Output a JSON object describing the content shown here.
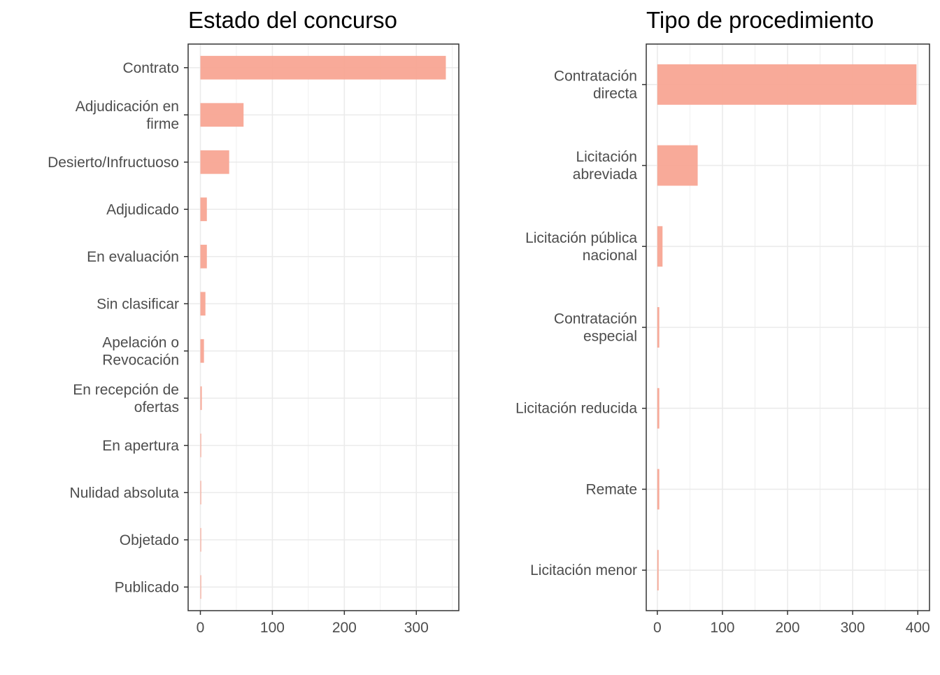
{
  "chart_data": [
    {
      "type": "bar",
      "orientation": "horizontal",
      "title": "Estado del concurso",
      "xlabel": "",
      "ylabel": "",
      "categories": [
        "Publicado",
        "Objetado",
        "Nulidad absoluta",
        "En apertura",
        "En recepción de ofertas",
        "Apelación o Revocación",
        "Sin clasificar",
        "En evaluación",
        "Adjudicado",
        "Desierto/Infructuoso",
        "Adjudicación en firme",
        "Contrato"
      ],
      "category_lines": [
        [
          "Publicado"
        ],
        [
          "Objetado"
        ],
        [
          "Nulidad absoluta"
        ],
        [
          "En apertura"
        ],
        [
          "En recepción de",
          "ofertas"
        ],
        [
          "Apelación o",
          "Revocación"
        ],
        [
          "Sin clasificar"
        ],
        [
          "En evaluación"
        ],
        [
          "Adjudicado"
        ],
        [
          "Desierto/Infructuoso"
        ],
        [
          "Adjudicación en",
          "firme"
        ],
        [
          "Contrato"
        ]
      ],
      "values": [
        1,
        1,
        1,
        1,
        2,
        5,
        7,
        9,
        9,
        40,
        60,
        341
      ],
      "xlim": [
        -17,
        359
      ],
      "xticks": [
        0,
        100,
        200,
        300
      ],
      "grid": true,
      "bar_color": "#f8a593"
    },
    {
      "type": "bar",
      "orientation": "horizontal",
      "title": "Tipo de procedimiento",
      "xlabel": "",
      "ylabel": "",
      "categories": [
        "Licitación menor",
        "Remate",
        "Licitación reducida",
        "Contratación especial",
        "Licitación pública nacional",
        "Licitación abreviada",
        "Contratación directa"
      ],
      "category_lines": [
        [
          "Licitación menor"
        ],
        [
          "Remate"
        ],
        [
          "Licitación reducida"
        ],
        [
          "Contratación",
          "especial"
        ],
        [
          "Licitación pública",
          "nacional"
        ],
        [
          "Licitación",
          "abreviada"
        ],
        [
          "Contratación",
          "directa"
        ]
      ],
      "values": [
        2,
        3,
        3,
        3,
        8,
        62,
        398
      ],
      "xlim": [
        -17,
        418
      ],
      "xticks": [
        0,
        100,
        200,
        300,
        400
      ],
      "grid": true,
      "bar_color": "#f8a593"
    }
  ]
}
